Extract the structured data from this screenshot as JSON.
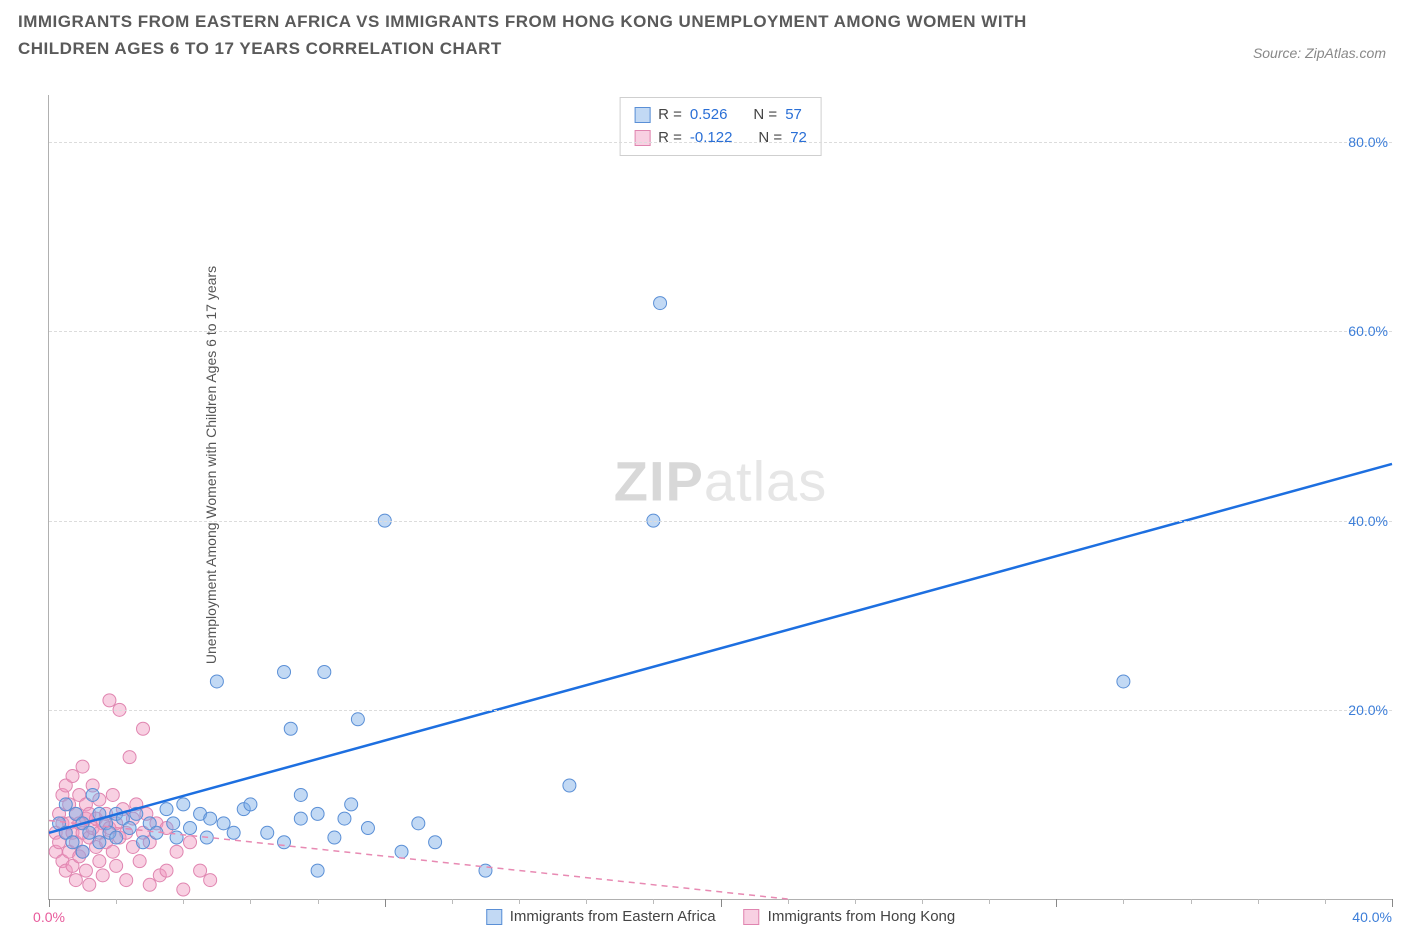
{
  "title": "IMMIGRANTS FROM EASTERN AFRICA VS IMMIGRANTS FROM HONG KONG UNEMPLOYMENT AMONG WOMEN WITH CHILDREN AGES 6 TO 17 YEARS CORRELATION CHART",
  "source": "Source: ZipAtlas.com",
  "ylabel": "Unemployment Among Women with Children Ages 6 to 17 years",
  "watermark_a": "ZIP",
  "watermark_b": "atlas",
  "chart": {
    "type": "scatter-correlation",
    "background_color": "#ffffff",
    "grid_color": "#dcdcdc",
    "axis_color": "#b0b0b0",
    "x_min": 0,
    "x_max": 40,
    "y_min": 0,
    "y_max": 85,
    "y_ticks": [
      20,
      40,
      60,
      80
    ],
    "y_tick_labels": [
      "20.0%",
      "40.0%",
      "60.0%",
      "80.0%"
    ],
    "x_origin_label": "0.0%",
    "x_right_label": "40.0%",
    "x_major_ticks": [
      0,
      10,
      20,
      30,
      40
    ],
    "x_minor_step": 2,
    "font_color_blue": "#3b7dd8",
    "font_color_pink": "#e85a9b",
    "series": {
      "blue": {
        "label": "Immigrants from Eastern Africa",
        "R": "0.526",
        "N": "57",
        "fill": "rgba(120,170,230,0.45)",
        "stroke": "#5a8fd6",
        "line_color": "#1d6fe0",
        "line_width": 2.5,
        "line": {
          "x1": 0,
          "y1": 7,
          "x2": 40,
          "y2": 46
        },
        "points": [
          [
            0.3,
            8
          ],
          [
            0.5,
            10
          ],
          [
            0.5,
            7
          ],
          [
            0.7,
            6
          ],
          [
            0.8,
            9
          ],
          [
            1,
            5
          ],
          [
            1,
            8
          ],
          [
            1.2,
            7
          ],
          [
            1.3,
            11
          ],
          [
            1.5,
            6
          ],
          [
            1.5,
            9
          ],
          [
            1.7,
            8
          ],
          [
            1.8,
            7
          ],
          [
            2,
            9
          ],
          [
            2,
            6.5
          ],
          [
            2.2,
            8.5
          ],
          [
            2.4,
            7.5
          ],
          [
            2.6,
            9
          ],
          [
            2.8,
            6
          ],
          [
            3,
            8
          ],
          [
            3.2,
            7
          ],
          [
            3.5,
            9.5
          ],
          [
            3.7,
            8
          ],
          [
            3.8,
            6.5
          ],
          [
            4,
            10
          ],
          [
            4.2,
            7.5
          ],
          [
            4.5,
            9
          ],
          [
            4.7,
            6.5
          ],
          [
            4.8,
            8.5
          ],
          [
            5,
            23
          ],
          [
            5.2,
            8
          ],
          [
            5.5,
            7
          ],
          [
            5.8,
            9.5
          ],
          [
            6,
            10
          ],
          [
            6.5,
            7
          ],
          [
            7,
            24
          ],
          [
            7,
            6
          ],
          [
            7.2,
            18
          ],
          [
            7.5,
            11
          ],
          [
            7.5,
            8.5
          ],
          [
            8,
            9
          ],
          [
            8,
            3
          ],
          [
            8.2,
            24
          ],
          [
            8.5,
            6.5
          ],
          [
            8.8,
            8.5
          ],
          [
            9,
            10
          ],
          [
            9.2,
            19
          ],
          [
            9.5,
            7.5
          ],
          [
            10,
            40
          ],
          [
            10.5,
            5
          ],
          [
            11,
            8
          ],
          [
            11.5,
            6
          ],
          [
            13,
            3
          ],
          [
            15.5,
            12
          ],
          [
            18,
            40
          ],
          [
            18.2,
            63
          ],
          [
            32,
            23
          ]
        ]
      },
      "pink": {
        "label": "Immigrants from Hong Kong",
        "R": "-0.122",
        "N": "72",
        "fill": "rgba(240,150,190,0.45)",
        "stroke": "#e085b0",
        "line_color": "#e88ab3",
        "line_width": 1.5,
        "line_dash": "6,5",
        "line": {
          "x1": 0,
          "y1": 8.3,
          "x2": 22,
          "y2": 0
        },
        "points": [
          [
            0.2,
            7
          ],
          [
            0.2,
            5
          ],
          [
            0.3,
            9
          ],
          [
            0.3,
            6
          ],
          [
            0.4,
            8
          ],
          [
            0.4,
            4
          ],
          [
            0.4,
            11
          ],
          [
            0.5,
            7
          ],
          [
            0.5,
            12
          ],
          [
            0.5,
            3
          ],
          [
            0.6,
            8
          ],
          [
            0.6,
            5
          ],
          [
            0.6,
            10
          ],
          [
            0.7,
            7
          ],
          [
            0.7,
            13
          ],
          [
            0.7,
            3.5
          ],
          [
            0.8,
            9
          ],
          [
            0.8,
            6
          ],
          [
            0.8,
            2
          ],
          [
            0.9,
            8
          ],
          [
            0.9,
            11
          ],
          [
            0.9,
            4.5
          ],
          [
            1,
            7
          ],
          [
            1,
            5
          ],
          [
            1,
            14
          ],
          [
            1.1,
            8.5
          ],
          [
            1.1,
            3
          ],
          [
            1.1,
            10
          ],
          [
            1.2,
            6.5
          ],
          [
            1.2,
            9
          ],
          [
            1.2,
            1.5
          ],
          [
            1.3,
            7.5
          ],
          [
            1.3,
            12
          ],
          [
            1.4,
            5.5
          ],
          [
            1.4,
            8.5
          ],
          [
            1.5,
            7
          ],
          [
            1.5,
            4
          ],
          [
            1.5,
            10.5
          ],
          [
            1.6,
            8
          ],
          [
            1.6,
            2.5
          ],
          [
            1.7,
            9
          ],
          [
            1.7,
            6
          ],
          [
            1.8,
            21
          ],
          [
            1.8,
            7.5
          ],
          [
            1.9,
            5
          ],
          [
            1.9,
            11
          ],
          [
            2,
            8
          ],
          [
            2,
            3.5
          ],
          [
            2.1,
            20
          ],
          [
            2.1,
            6.5
          ],
          [
            2.2,
            9.5
          ],
          [
            2.3,
            7
          ],
          [
            2.3,
            2
          ],
          [
            2.4,
            15
          ],
          [
            2.5,
            8.5
          ],
          [
            2.5,
            5.5
          ],
          [
            2.6,
            10
          ],
          [
            2.7,
            4
          ],
          [
            2.8,
            18
          ],
          [
            2.8,
            7
          ],
          [
            2.9,
            9
          ],
          [
            3,
            6
          ],
          [
            3,
            1.5
          ],
          [
            3.2,
            8
          ],
          [
            3.3,
            2.5
          ],
          [
            3.5,
            7.5
          ],
          [
            3.5,
            3
          ],
          [
            3.8,
            5
          ],
          [
            4,
            1
          ],
          [
            4.2,
            6
          ],
          [
            4.5,
            3
          ],
          [
            4.8,
            2
          ]
        ]
      }
    },
    "point_radius": 6.5,
    "legend_r_label": "R =",
    "legend_n_label": "N ="
  }
}
